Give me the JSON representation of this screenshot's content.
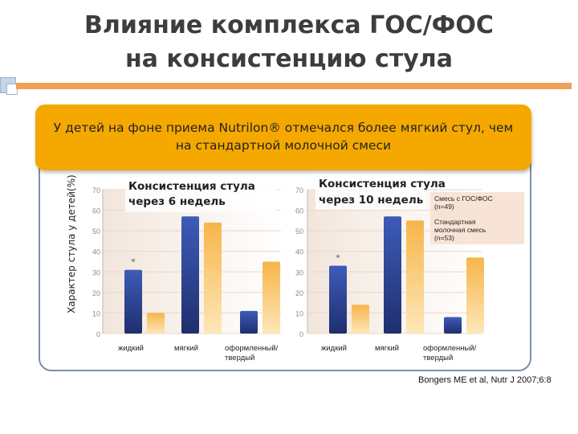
{
  "slide": {
    "title_line1": "Влияние комплекса  ГОС/ФОС",
    "title_line2": "на консистенцию стула",
    "banner_line1": "У детей на фоне приема Nutrilon® отмечался более мягкий стул, чем",
    "banner_line2": "на стандартной молочной смеси",
    "citation": "Bongers ME et al, Nutr J 2007;6:8"
  },
  "colors": {
    "accent_orange": "#f5a800",
    "series_gos": "#2f4a99",
    "series_std": "#f7b54a"
  },
  "chart_data": {
    "type": "bar",
    "ylabel": "Характер стула у детей(%)",
    "ylim": [
      0,
      70
    ],
    "yticks": [
      0,
      10,
      20,
      30,
      40,
      50,
      60,
      70
    ],
    "categories": [
      "жидкий",
      "мягкий",
      "оформленный/ твердый"
    ],
    "legend": {
      "placement": "top-right",
      "entries": [
        "Смесь с ГОС/ФОС (n=49)",
        "Стандартная молочная смесь (n=53)"
      ]
    },
    "panels": [
      {
        "title_line1": "Консистенция стула",
        "title_line2": "через 6 недель",
        "series": [
          {
            "name": "Смесь с ГОС/ФОС (n=49)",
            "values": [
              31,
              57,
              11
            ]
          },
          {
            "name": "Стандартная молочная смесь (n=53)",
            "values": [
              10,
              54,
              35
            ]
          }
        ],
        "annotations": [
          "*",
          "",
          ""
        ]
      },
      {
        "title_line1": "Консистенция стула",
        "title_line2": "через 10 недель",
        "series": [
          {
            "name": "Смесь с ГОС/ФОС (n=49)",
            "values": [
              33,
              57,
              8
            ]
          },
          {
            "name": "Стандартная молочная смесь (n=53)",
            "values": [
              14,
              55,
              37
            ]
          }
        ],
        "annotations": [
          "*",
          "",
          ""
        ]
      }
    ]
  }
}
